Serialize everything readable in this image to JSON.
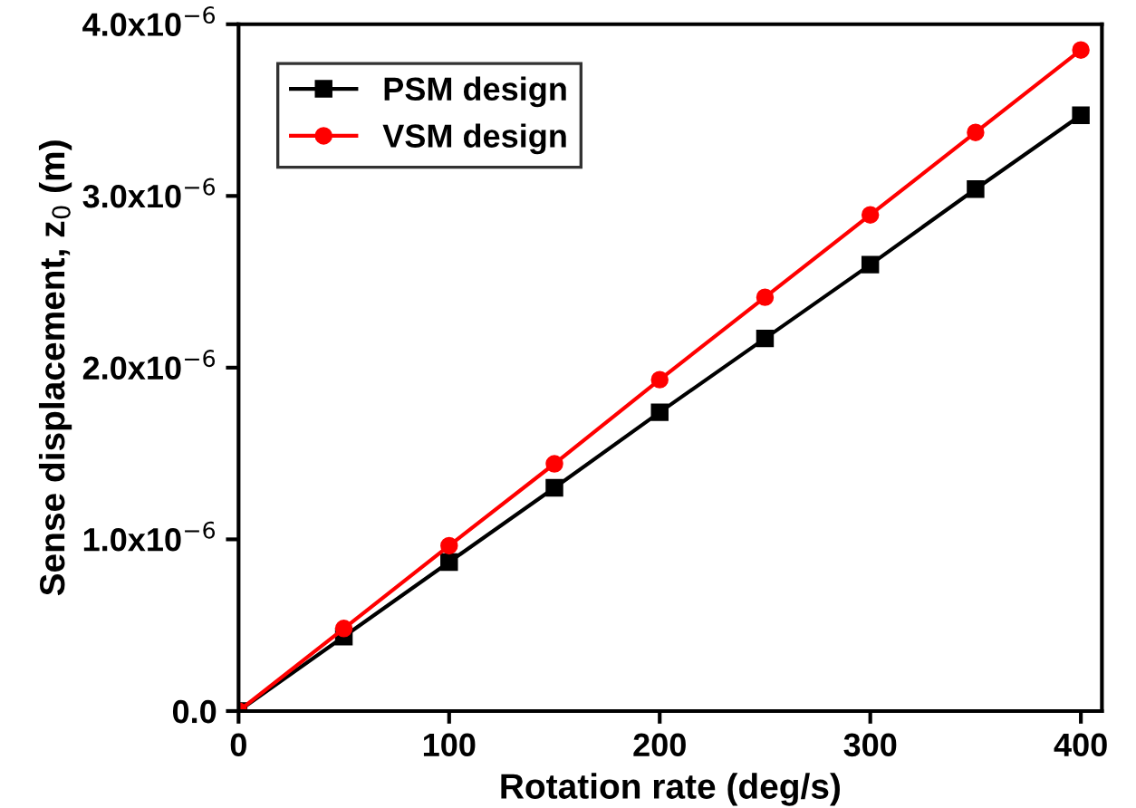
{
  "chart_data": {
    "type": "line",
    "xlabel": "Rotation rate (deg/s)",
    "ylabel": "Sense displacement, z$_{0}$ (m)",
    "x": [
      0,
      50,
      100,
      150,
      200,
      250,
      300,
      350,
      400
    ],
    "series": [
      {
        "name": "PSM design",
        "color": "#000000",
        "marker": "square",
        "values": [
          0,
          4.34e-07,
          8.68e-07,
          1.3e-06,
          1.74e-06,
          2.17e-06,
          2.6e-06,
          3.04e-06,
          3.47e-06
        ]
      },
      {
        "name": "VSM design",
        "color": "#ff0000",
        "marker": "circle",
        "values": [
          0,
          4.81e-07,
          9.63e-07,
          1.44e-06,
          1.93e-06,
          2.41e-06,
          2.89e-06,
          3.37e-06,
          3.85e-06
        ]
      }
    ],
    "xlim": [
      0,
      410
    ],
    "xticks": [
      0,
      100,
      200,
      300,
      400
    ],
    "ylim": [
      0,
      4e-06
    ],
    "yticks": [
      {
        "value": 0,
        "label": "0.0"
      },
      {
        "value": 1e-06,
        "label": "1.0x10$^{−6}$"
      },
      {
        "value": 2e-06,
        "label": "2.0x10$^{−6}$"
      },
      {
        "value": 3e-06,
        "label": "3.0x10$^{−6}$"
      },
      {
        "value": 4e-06,
        "label": "4.0x10$^{−6}$"
      }
    ],
    "legend": "top left",
    "grid": false,
    "line_style": "solid"
  }
}
